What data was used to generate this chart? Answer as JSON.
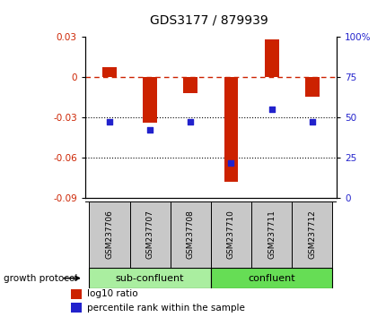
{
  "title": "GDS3177 / 879939",
  "samples": [
    "GSM237706",
    "GSM237707",
    "GSM237708",
    "GSM237710",
    "GSM237711",
    "GSM237712"
  ],
  "log10_ratio": [
    0.007,
    -0.034,
    -0.012,
    -0.078,
    0.028,
    -0.015
  ],
  "percentile_rank": [
    47,
    42,
    47,
    22,
    55,
    47
  ],
  "bar_color": "#CC2200",
  "dot_color": "#2222CC",
  "ylim_left": [
    -0.09,
    0.03
  ],
  "ylim_right": [
    0,
    100
  ],
  "yticks_left": [
    0.03,
    0,
    -0.03,
    -0.06,
    -0.09
  ],
  "ytick_labels_left": [
    "0.03",
    "0",
    "-0.03",
    "-0.06",
    "-0.09"
  ],
  "yticks_right": [
    100,
    75,
    50,
    25,
    0
  ],
  "ytick_labels_right": [
    "100%",
    "75",
    "50",
    "25",
    "0"
  ],
  "dotted_lines": [
    -0.03,
    -0.06
  ],
  "group1_label": "sub-confluent",
  "group2_label": "confluent",
  "group1_indices": [
    0,
    1,
    2
  ],
  "group2_indices": [
    3,
    4,
    5
  ],
  "group1_color": "#AAEEA0",
  "group2_color": "#66DD55",
  "growth_label": "growth protocol",
  "legend_red": "log10 ratio",
  "legend_blue": "percentile rank within the sample",
  "bar_width": 0.35,
  "sample_bg": "#C8C8C8",
  "title_fontsize": 10
}
